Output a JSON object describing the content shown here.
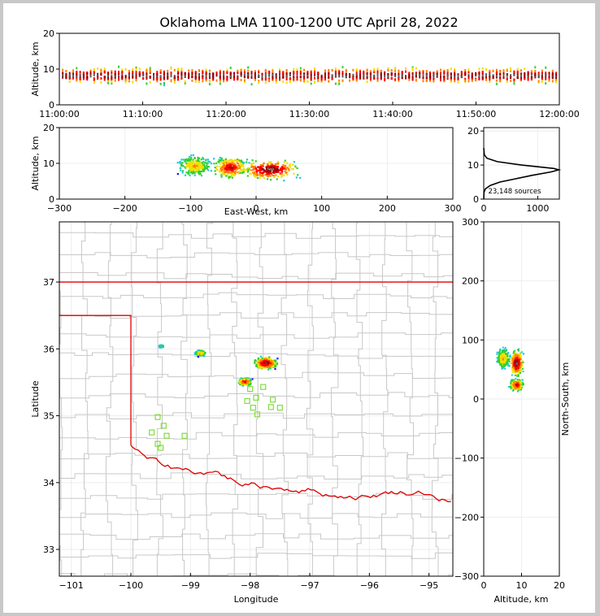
{
  "chart_data": {
    "type": "scatter",
    "title": "Oklahoma LMA 1100-1200 UTC April 28, 2022",
    "panels": {
      "time_height": {
        "xlabel": "",
        "ylabel": "Altitude, km",
        "xticks": [
          "11:00:00",
          "11:10:00",
          "11:20:00",
          "11:30:00",
          "11:40:00",
          "11:50:00",
          "12:00:00"
        ],
        "xlim_minutes": [
          0,
          60
        ],
        "ylim": [
          0,
          20
        ],
        "yticks": [
          0,
          10,
          20
        ],
        "altitude_band_km": [
          3,
          13
        ],
        "core_altitude_km": 8.5
      },
      "ew_height": {
        "xlabel": "East-West, km",
        "ylabel": "Altitude, km",
        "xlim": [
          -300,
          300
        ],
        "xticks": [
          -300,
          -200,
          -100,
          0,
          100,
          200,
          300
        ],
        "ylim": [
          0,
          20
        ],
        "yticks": [
          0,
          10,
          20
        ],
        "cells": [
          {
            "x": -95,
            "alt": 9.5,
            "spread": 22,
            "level": 2
          },
          {
            "x": -40,
            "alt": 9,
            "spread": 24,
            "level": 4
          },
          {
            "x": 20,
            "alt": 8.5,
            "spread": 40,
            "level": 5
          }
        ]
      },
      "altitude_histogram": {
        "xlim": [
          0,
          1400
        ],
        "xticks": [
          0,
          1000
        ],
        "ylim": [
          0,
          21
        ],
        "yticks": [
          0,
          10,
          20
        ],
        "annotation": "23,148 sources",
        "profile": [
          {
            "alt": 0,
            "count": 0
          },
          {
            "alt": 2,
            "count": 5
          },
          {
            "alt": 3,
            "count": 30
          },
          {
            "alt": 4,
            "count": 120
          },
          {
            "alt": 5,
            "count": 300
          },
          {
            "alt": 6,
            "count": 600
          },
          {
            "alt": 7,
            "count": 900
          },
          {
            "alt": 8,
            "count": 1250
          },
          {
            "alt": 8.6,
            "count": 1390
          },
          {
            "alt": 9,
            "count": 1300
          },
          {
            "alt": 10,
            "count": 700
          },
          {
            "alt": 11,
            "count": 250
          },
          {
            "alt": 12,
            "count": 60
          },
          {
            "alt": 13,
            "count": 10
          },
          {
            "alt": 15,
            "count": 0
          }
        ]
      },
      "plan_view": {
        "xlabel": "Longitude",
        "ylabel": "Latitude",
        "xlim": [
          -101.2,
          -94.6
        ],
        "ylim": [
          32.6,
          37.9
        ],
        "xticks": [
          -101,
          -100,
          -99,
          -98,
          -97,
          -96,
          -95
        ],
        "yticks": [
          33,
          34,
          35,
          36,
          37
        ],
        "cells": [
          {
            "lon": -98.1,
            "lat": 35.52,
            "level": 4,
            "spread": 0.18
          },
          {
            "lon": -97.75,
            "lat": 35.8,
            "level": 5,
            "spread": 0.28
          },
          {
            "lon": -98.85,
            "lat": 35.95,
            "level": 2,
            "spread": 0.15
          },
          {
            "lon": -99.5,
            "lat": 36.05,
            "level": 1,
            "spread": 0.06
          }
        ],
        "stations": [
          {
            "lon": -99.55,
            "lat": 34.98
          },
          {
            "lon": -99.45,
            "lat": 34.85
          },
          {
            "lon": -99.65,
            "lat": 34.75
          },
          {
            "lon": -99.4,
            "lat": 34.7
          },
          {
            "lon": -99.55,
            "lat": 34.58
          },
          {
            "lon": -99.5,
            "lat": 34.52
          },
          {
            "lon": -99.1,
            "lat": 34.7
          },
          {
            "lon": -98.0,
            "lat": 35.4
          },
          {
            "lon": -97.78,
            "lat": 35.43
          },
          {
            "lon": -98.05,
            "lat": 35.22
          },
          {
            "lon": -97.9,
            "lat": 35.27
          },
          {
            "lon": -97.62,
            "lat": 35.24
          },
          {
            "lon": -97.95,
            "lat": 35.12
          },
          {
            "lon": -97.65,
            "lat": 35.13
          },
          {
            "lon": -97.5,
            "lat": 35.12
          },
          {
            "lon": -97.88,
            "lat": 35.02
          }
        ]
      },
      "ns_height": {
        "xlabel": "Altitude, km",
        "ylabel": "North-South, km",
        "xlim": [
          0,
          20
        ],
        "xticks": [
          0,
          10,
          20
        ],
        "ylim": [
          -300,
          300
        ],
        "yticks": [
          -300,
          -200,
          -100,
          0,
          100,
          200,
          300
        ],
        "cells": [
          {
            "alt": 8.5,
            "ns": 25,
            "spread": 10,
            "level": 4
          },
          {
            "alt": 8.5,
            "ns": 62,
            "spread": 22,
            "level": 5
          },
          {
            "alt": 5,
            "ns": 70,
            "spread": 18,
            "level": 2
          }
        ]
      }
    }
  },
  "colors": {
    "border_red": "#e00000",
    "county_gray": "#c8c8c8",
    "station_green": "#7fdd3f",
    "density_scale": [
      "#1010ff",
      "#18c8e8",
      "#30d030",
      "#f0e000",
      "#ff8000",
      "#ff0000",
      "#a00000",
      "#606060",
      "#ffffff"
    ]
  }
}
